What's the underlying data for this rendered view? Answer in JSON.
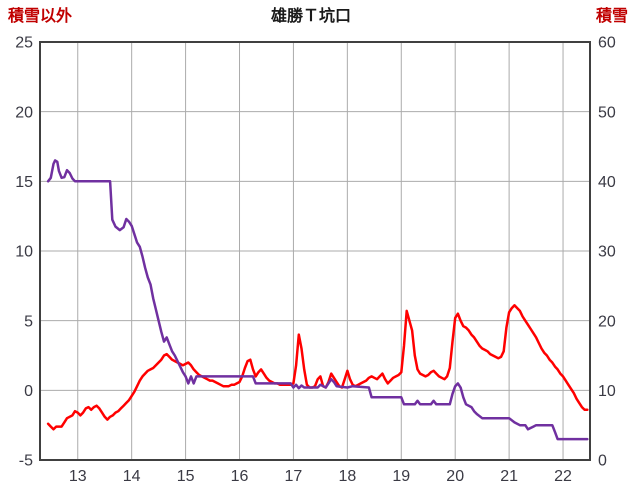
{
  "chart": {
    "title": "雄勝Ｔ坑口",
    "left_axis_title": "積雪以外",
    "right_axis_title": "積雪"
  },
  "colors": {
    "red_series": "#ff0000",
    "purple_series": "#7030a0",
    "gridline": "#ababab",
    "plot_border": "#404040",
    "tick_text": "#3a3a44",
    "axis_title_text": "#c00000"
  },
  "chart_data": {
    "type": "line",
    "title": "雄勝Ｔ坑口",
    "left_axis_title": "積雪以外",
    "right_axis_title": "積雪",
    "xlim": [
      12.3,
      22.5
    ],
    "left_ylim": [
      -5,
      25
    ],
    "right_ylim": [
      0,
      60
    ],
    "xticks": [
      13,
      14,
      15,
      16,
      17,
      18,
      19,
      20,
      21,
      22
    ],
    "left_yticks": [
      25,
      20,
      15,
      10,
      5,
      0,
      -5
    ],
    "right_yticks": [
      60,
      50,
      40,
      30,
      20,
      10,
      0
    ],
    "grid": true,
    "legend": "none",
    "series": [
      {
        "name": "積雪以外",
        "axis": "left",
        "color": "#ff0000",
        "points": [
          [
            12.45,
            -2.4
          ],
          [
            12.5,
            -2.6
          ],
          [
            12.55,
            -2.8
          ],
          [
            12.6,
            -2.6
          ],
          [
            12.7,
            -2.6
          ],
          [
            12.75,
            -2.3
          ],
          [
            12.8,
            -2.0
          ],
          [
            12.9,
            -1.8
          ],
          [
            12.95,
            -1.5
          ],
          [
            13.0,
            -1.6
          ],
          [
            13.05,
            -1.8
          ],
          [
            13.1,
            -1.6
          ],
          [
            13.15,
            -1.3
          ],
          [
            13.2,
            -1.2
          ],
          [
            13.25,
            -1.4
          ],
          [
            13.3,
            -1.2
          ],
          [
            13.35,
            -1.1
          ],
          [
            13.4,
            -1.3
          ],
          [
            13.45,
            -1.6
          ],
          [
            13.5,
            -1.9
          ],
          [
            13.55,
            -2.1
          ],
          [
            13.6,
            -1.9
          ],
          [
            13.65,
            -1.8
          ],
          [
            13.7,
            -1.6
          ],
          [
            13.75,
            -1.5
          ],
          [
            13.8,
            -1.3
          ],
          [
            13.85,
            -1.1
          ],
          [
            13.9,
            -0.9
          ],
          [
            13.95,
            -0.7
          ],
          [
            14.0,
            -0.4
          ],
          [
            14.05,
            -0.1
          ],
          [
            14.1,
            0.3
          ],
          [
            14.15,
            0.7
          ],
          [
            14.2,
            1.0
          ],
          [
            14.25,
            1.2
          ],
          [
            14.3,
            1.4
          ],
          [
            14.35,
            1.5
          ],
          [
            14.4,
            1.6
          ],
          [
            14.45,
            1.8
          ],
          [
            14.5,
            2.0
          ],
          [
            14.55,
            2.2
          ],
          [
            14.6,
            2.5
          ],
          [
            14.65,
            2.6
          ],
          [
            14.7,
            2.4
          ],
          [
            14.75,
            2.2
          ],
          [
            14.8,
            2.1
          ],
          [
            14.85,
            2.0
          ],
          [
            14.9,
            1.9
          ],
          [
            14.95,
            1.8
          ],
          [
            15.0,
            1.9
          ],
          [
            15.05,
            2.0
          ],
          [
            15.1,
            1.8
          ],
          [
            15.15,
            1.5
          ],
          [
            15.2,
            1.3
          ],
          [
            15.25,
            1.1
          ],
          [
            15.3,
            1.0
          ],
          [
            15.35,
            0.9
          ],
          [
            15.4,
            0.8
          ],
          [
            15.45,
            0.7
          ],
          [
            15.5,
            0.7
          ],
          [
            15.55,
            0.6
          ],
          [
            15.6,
            0.5
          ],
          [
            15.65,
            0.4
          ],
          [
            15.7,
            0.3
          ],
          [
            15.75,
            0.3
          ],
          [
            15.8,
            0.3
          ],
          [
            15.85,
            0.4
          ],
          [
            15.9,
            0.4
          ],
          [
            15.95,
            0.5
          ],
          [
            16.0,
            0.6
          ],
          [
            16.05,
            1.0
          ],
          [
            16.1,
            1.6
          ],
          [
            16.15,
            2.1
          ],
          [
            16.2,
            2.2
          ],
          [
            16.25,
            1.5
          ],
          [
            16.3,
            1.0
          ],
          [
            16.35,
            1.3
          ],
          [
            16.4,
            1.5
          ],
          [
            16.45,
            1.2
          ],
          [
            16.5,
            0.9
          ],
          [
            16.55,
            0.7
          ],
          [
            16.6,
            0.6
          ],
          [
            16.65,
            0.5
          ],
          [
            16.7,
            0.5
          ],
          [
            16.75,
            0.4
          ],
          [
            16.8,
            0.4
          ],
          [
            16.85,
            0.4
          ],
          [
            16.9,
            0.4
          ],
          [
            16.95,
            0.4
          ],
          [
            17.0,
            0.5
          ],
          [
            17.05,
            1.8
          ],
          [
            17.1,
            4.0
          ],
          [
            17.15,
            3.0
          ],
          [
            17.2,
            1.5
          ],
          [
            17.25,
            0.4
          ],
          [
            17.3,
            0.2
          ],
          [
            17.35,
            0.2
          ],
          [
            17.4,
            0.3
          ],
          [
            17.45,
            0.8
          ],
          [
            17.5,
            1.0
          ],
          [
            17.55,
            0.3
          ],
          [
            17.6,
            0.2
          ],
          [
            17.65,
            0.6
          ],
          [
            17.7,
            1.2
          ],
          [
            17.75,
            0.9
          ],
          [
            17.8,
            0.6
          ],
          [
            17.85,
            0.3
          ],
          [
            17.9,
            0.2
          ],
          [
            17.95,
            0.8
          ],
          [
            18.0,
            1.4
          ],
          [
            18.05,
            0.8
          ],
          [
            18.1,
            0.4
          ],
          [
            18.15,
            0.3
          ],
          [
            18.2,
            0.4
          ],
          [
            18.25,
            0.5
          ],
          [
            18.3,
            0.6
          ],
          [
            18.35,
            0.7
          ],
          [
            18.4,
            0.9
          ],
          [
            18.45,
            1.0
          ],
          [
            18.5,
            0.9
          ],
          [
            18.55,
            0.8
          ],
          [
            18.6,
            1.0
          ],
          [
            18.65,
            1.2
          ],
          [
            18.7,
            0.8
          ],
          [
            18.75,
            0.5
          ],
          [
            18.8,
            0.7
          ],
          [
            18.85,
            0.9
          ],
          [
            18.9,
            1.0
          ],
          [
            18.95,
            1.1
          ],
          [
            19.0,
            1.3
          ],
          [
            19.05,
            3.2
          ],
          [
            19.1,
            5.7
          ],
          [
            19.15,
            5.0
          ],
          [
            19.2,
            4.3
          ],
          [
            19.25,
            2.5
          ],
          [
            19.3,
            1.5
          ],
          [
            19.35,
            1.2
          ],
          [
            19.4,
            1.1
          ],
          [
            19.45,
            1.0
          ],
          [
            19.5,
            1.1
          ],
          [
            19.55,
            1.3
          ],
          [
            19.6,
            1.4
          ],
          [
            19.65,
            1.2
          ],
          [
            19.7,
            1.0
          ],
          [
            19.75,
            0.9
          ],
          [
            19.8,
            0.8
          ],
          [
            19.85,
            1.0
          ],
          [
            19.9,
            1.6
          ],
          [
            19.95,
            3.5
          ],
          [
            20.0,
            5.2
          ],
          [
            20.05,
            5.5
          ],
          [
            20.1,
            5.0
          ],
          [
            20.15,
            4.6
          ],
          [
            20.2,
            4.5
          ],
          [
            20.25,
            4.3
          ],
          [
            20.3,
            4.0
          ],
          [
            20.35,
            3.8
          ],
          [
            20.4,
            3.5
          ],
          [
            20.45,
            3.2
          ],
          [
            20.5,
            3.0
          ],
          [
            20.55,
            2.9
          ],
          [
            20.6,
            2.8
          ],
          [
            20.65,
            2.6
          ],
          [
            20.7,
            2.5
          ],
          [
            20.75,
            2.4
          ],
          [
            20.8,
            2.3
          ],
          [
            20.85,
            2.4
          ],
          [
            20.9,
            2.8
          ],
          [
            20.95,
            4.5
          ],
          [
            21.0,
            5.6
          ],
          [
            21.05,
            5.9
          ],
          [
            21.1,
            6.1
          ],
          [
            21.15,
            5.9
          ],
          [
            21.2,
            5.7
          ],
          [
            21.25,
            5.3
          ],
          [
            21.3,
            5.0
          ],
          [
            21.35,
            4.7
          ],
          [
            21.4,
            4.4
          ],
          [
            21.45,
            4.1
          ],
          [
            21.5,
            3.8
          ],
          [
            21.55,
            3.4
          ],
          [
            21.6,
            3.0
          ],
          [
            21.65,
            2.7
          ],
          [
            21.7,
            2.5
          ],
          [
            21.75,
            2.2
          ],
          [
            21.8,
            2.0
          ],
          [
            21.85,
            1.7
          ],
          [
            21.9,
            1.5
          ],
          [
            21.95,
            1.2
          ],
          [
            22.0,
            1.0
          ],
          [
            22.05,
            0.7
          ],
          [
            22.1,
            0.4
          ],
          [
            22.15,
            0.1
          ],
          [
            22.2,
            -0.2
          ],
          [
            22.25,
            -0.6
          ],
          [
            22.3,
            -0.9
          ],
          [
            22.35,
            -1.2
          ],
          [
            22.4,
            -1.4
          ],
          [
            22.45,
            -1.4
          ]
        ]
      },
      {
        "name": "積雪",
        "axis": "right",
        "color": "#7030a0",
        "points": [
          [
            12.45,
            40
          ],
          [
            12.5,
            40.5
          ],
          [
            12.55,
            42.5
          ],
          [
            12.58,
            43
          ],
          [
            12.62,
            42.8
          ],
          [
            12.65,
            41.5
          ],
          [
            12.7,
            40.5
          ],
          [
            12.75,
            40.6
          ],
          [
            12.8,
            41.6
          ],
          [
            12.85,
            41.2
          ],
          [
            12.9,
            40.4
          ],
          [
            12.95,
            40
          ],
          [
            13.6,
            40
          ],
          [
            13.64,
            34.5
          ],
          [
            13.7,
            33.5
          ],
          [
            13.78,
            33
          ],
          [
            13.85,
            33.4
          ],
          [
            13.9,
            34.6
          ],
          [
            13.95,
            34.2
          ],
          [
            14.0,
            33.6
          ],
          [
            14.05,
            32.4
          ],
          [
            14.1,
            31.2
          ],
          [
            14.15,
            30.6
          ],
          [
            14.2,
            29.2
          ],
          [
            14.25,
            27.6
          ],
          [
            14.3,
            26.2
          ],
          [
            14.35,
            25.2
          ],
          [
            14.4,
            23.2
          ],
          [
            14.45,
            21.6
          ],
          [
            14.5,
            20
          ],
          [
            14.55,
            18.4
          ],
          [
            14.6,
            17
          ],
          [
            14.65,
            17.6
          ],
          [
            14.7,
            16.6
          ],
          [
            14.75,
            15.6
          ],
          [
            14.8,
            15
          ],
          [
            14.85,
            14.2
          ],
          [
            14.9,
            13.4
          ],
          [
            14.95,
            12.6
          ],
          [
            15.0,
            12
          ],
          [
            15.05,
            11
          ],
          [
            15.1,
            12
          ],
          [
            15.15,
            11
          ],
          [
            15.2,
            12
          ],
          [
            16.25,
            12
          ],
          [
            16.3,
            11
          ],
          [
            16.95,
            11
          ],
          [
            17.0,
            10.4
          ],
          [
            17.05,
            10.8
          ],
          [
            17.1,
            10.3
          ],
          [
            17.15,
            10.7
          ],
          [
            17.2,
            10.4
          ],
          [
            17.45,
            10.4
          ],
          [
            17.5,
            10.8
          ],
          [
            17.6,
            10.4
          ],
          [
            17.7,
            11.6
          ],
          [
            17.75,
            11.2
          ],
          [
            17.8,
            10.6
          ],
          [
            18.0,
            10.4
          ],
          [
            18.1,
            10.6
          ],
          [
            18.4,
            10.4
          ],
          [
            18.45,
            9
          ],
          [
            19.0,
            9
          ],
          [
            19.05,
            8
          ],
          [
            19.25,
            8
          ],
          [
            19.3,
            8.5
          ],
          [
            19.35,
            8
          ],
          [
            19.55,
            8
          ],
          [
            19.6,
            8.5
          ],
          [
            19.65,
            8
          ],
          [
            19.9,
            8
          ],
          [
            19.95,
            9.5
          ],
          [
            20.0,
            10.6
          ],
          [
            20.05,
            11
          ],
          [
            20.1,
            10.4
          ],
          [
            20.15,
            9
          ],
          [
            20.2,
            8
          ],
          [
            20.3,
            7.6
          ],
          [
            20.35,
            7
          ],
          [
            20.4,
            6.6
          ],
          [
            20.5,
            6
          ],
          [
            21.0,
            6
          ],
          [
            21.1,
            5.4
          ],
          [
            21.2,
            5
          ],
          [
            21.3,
            5
          ],
          [
            21.35,
            4.4
          ],
          [
            21.45,
            4.8
          ],
          [
            21.5,
            5
          ],
          [
            21.8,
            5
          ],
          [
            21.85,
            4
          ],
          [
            21.9,
            3
          ],
          [
            22.45,
            3
          ]
        ]
      }
    ]
  }
}
